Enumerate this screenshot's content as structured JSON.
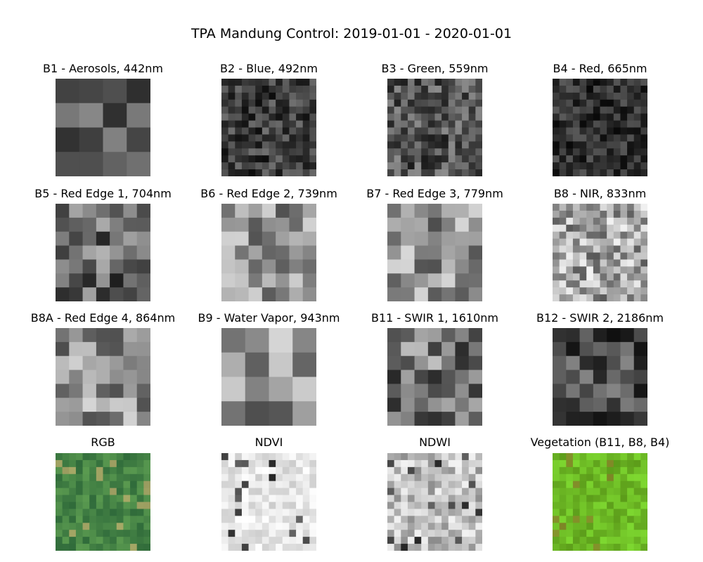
{
  "suptitle": "TPA Mandung Control: 2019-01-01 - 2020-01-01",
  "chart_data": {
    "type": "heatmap",
    "grid": {
      "rows": 4,
      "cols": 4
    },
    "panels": [
      {
        "title": "B1 - Aerosols, 442nm",
        "mode": "gray",
        "cells": 4,
        "seed": 11,
        "lo": 0.15,
        "hi": 0.6
      },
      {
        "title": "B2 - Blue, 492nm",
        "mode": "gray",
        "cells": 14,
        "seed": 21,
        "lo": 0.05,
        "hi": 0.45
      },
      {
        "title": "B3 - Green, 559nm",
        "mode": "gray",
        "cells": 14,
        "seed": 31,
        "lo": 0.1,
        "hi": 0.55
      },
      {
        "title": "B4 - Red, 665nm",
        "mode": "gray",
        "cells": 14,
        "seed": 41,
        "lo": 0.03,
        "hi": 0.35
      },
      {
        "title": "B5 - Red Edge 1, 704nm",
        "mode": "gray",
        "cells": 7,
        "seed": 51,
        "lo": 0.1,
        "hi": 0.7
      },
      {
        "title": "B6 - Red Edge 2, 739nm",
        "mode": "gray",
        "cells": 7,
        "seed": 61,
        "lo": 0.3,
        "hi": 0.85
      },
      {
        "title": "B7 - Red Edge 3, 779nm",
        "mode": "gray",
        "cells": 7,
        "seed": 71,
        "lo": 0.3,
        "hi": 0.85
      },
      {
        "title": "B8 - NIR, 833nm",
        "mode": "gray",
        "cells": 14,
        "seed": 81,
        "lo": 0.35,
        "hi": 0.95
      },
      {
        "title": "B8A - Red Edge 4, 864nm",
        "mode": "gray",
        "cells": 7,
        "seed": 91,
        "lo": 0.3,
        "hi": 0.85
      },
      {
        "title": "B9 - Water Vapor, 943nm",
        "mode": "gray",
        "cells": 4,
        "seed": 101,
        "lo": 0.3,
        "hi": 0.85
      },
      {
        "title": "B11 - SWIR 1, 1610nm",
        "mode": "gray",
        "cells": 7,
        "seed": 111,
        "lo": 0.15,
        "hi": 0.75
      },
      {
        "title": "B12 - SWIR 2, 2186nm",
        "mode": "gray",
        "cells": 7,
        "seed": 121,
        "lo": 0.05,
        "hi": 0.55
      },
      {
        "title": "RGB",
        "mode": "rgb",
        "cells": 14,
        "seed": 131,
        "color_a": "#2f6a3a",
        "color_b": "#5a9a50",
        "accent": "#c8b070"
      },
      {
        "title": "NDVI",
        "mode": "gray",
        "cells": 14,
        "seed": 141,
        "lo": 0.8,
        "hi": 1.0,
        "dark_spots": true
      },
      {
        "title": "NDWI",
        "mode": "gray",
        "cells": 14,
        "seed": 151,
        "lo": 0.55,
        "hi": 0.95,
        "dark_spots": true
      },
      {
        "title": "Vegetation (B11, B8, B4)",
        "mode": "rgb",
        "cells": 14,
        "seed": 161,
        "color_a": "#5c9c1a",
        "color_b": "#7ed830",
        "accent": "#8a7a2a"
      }
    ]
  }
}
